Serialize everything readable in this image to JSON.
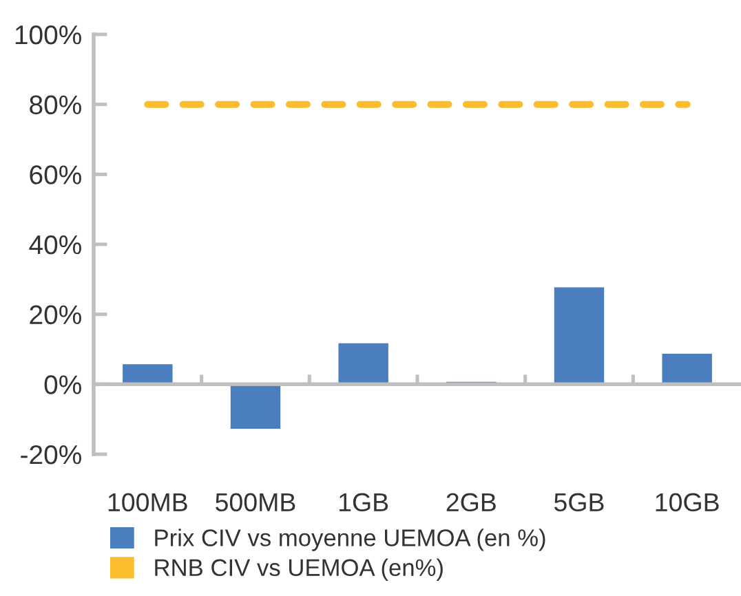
{
  "chart_data": {
    "type": "bar",
    "categories": [
      "100MB",
      "500MB",
      "1GB",
      "2GB",
      "5GB",
      "10GB"
    ],
    "series": [
      {
        "name": "Prix CIV vs moyenne UEMOA (en %)",
        "color": "#4a7ebf",
        "values": [
          6,
          -13,
          12,
          1,
          28,
          9
        ]
      },
      {
        "name": "RNB CIV vs UEMOA (en%)",
        "type": "line",
        "color": "#fbbc2d",
        "line_style": "dashed",
        "values": [
          80,
          80,
          80,
          80,
          80,
          80
        ]
      }
    ],
    "ylim": [
      -20,
      100
    ],
    "yticks": [
      {
        "value": -20,
        "label": "-20%"
      },
      {
        "value": 0,
        "label": "0%"
      },
      {
        "value": 20,
        "label": "20%"
      },
      {
        "value": 40,
        "label": "40%"
      },
      {
        "value": 60,
        "label": "60%"
      },
      {
        "value": 80,
        "label": "80%"
      },
      {
        "value": 100,
        "label": "100%"
      }
    ],
    "legend": "bottom"
  }
}
